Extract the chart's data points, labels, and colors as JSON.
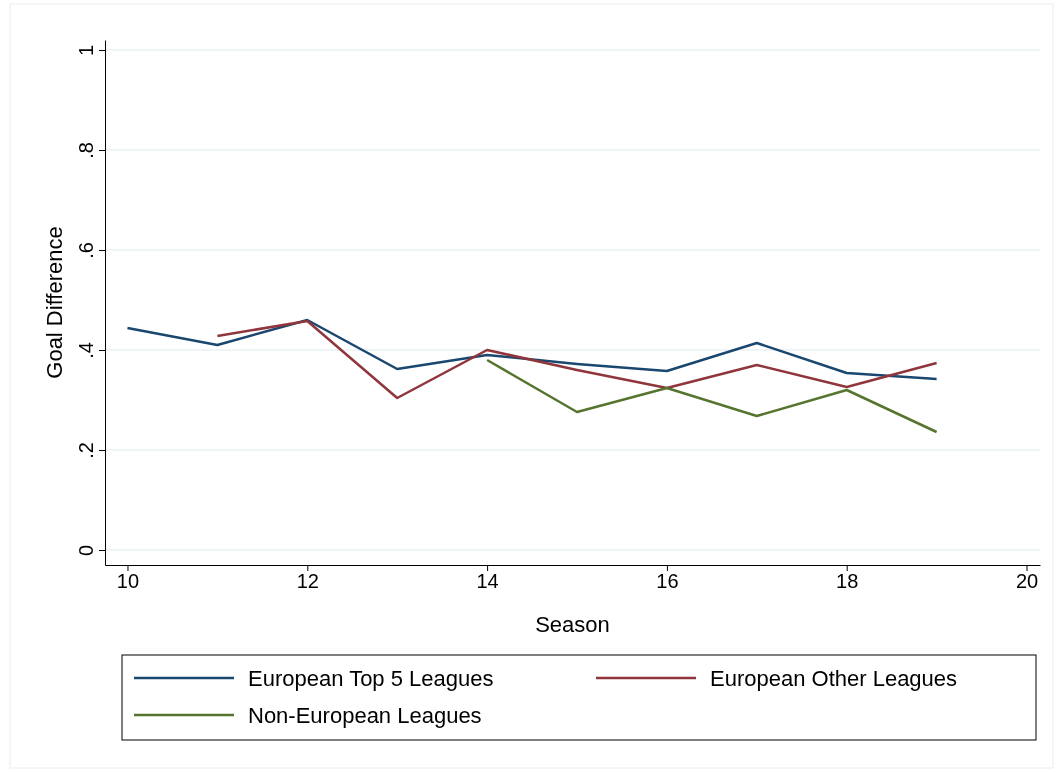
{
  "chart_data": {
    "type": "line",
    "xlabel": "Season",
    "ylabel": "Goal Difference",
    "xlim": [
      9.75,
      20.15
    ],
    "xticks": [
      10,
      12,
      14,
      16,
      18,
      20
    ],
    "ylim": [
      -0.03,
      1.02
    ],
    "yticks": [
      {
        "value": 0,
        "label": "0"
      },
      {
        "value": 0.2,
        "label": ".2"
      },
      {
        "value": 0.4,
        "label": ".4"
      },
      {
        "value": 0.6,
        "label": ".6"
      },
      {
        "value": 0.8,
        "label": ".8"
      },
      {
        "value": 1,
        "label": "1"
      }
    ],
    "grid": "y",
    "legend": "bottom",
    "marker": "none",
    "line_style": "solid",
    "series": [
      {
        "name": "European Top 5 Leagues",
        "color": "#1a476f",
        "x": [
          10,
          11,
          12,
          13,
          14,
          15,
          16,
          17,
          18,
          19
        ],
        "values": [
          0.444,
          0.41,
          0.46,
          0.362,
          0.39,
          0.372,
          0.358,
          0.414,
          0.354,
          0.342
        ]
      },
      {
        "name": "European Other Leagues",
        "color": "#90353b",
        "x": [
          11,
          12,
          13,
          14,
          15,
          16,
          17,
          18,
          19
        ],
        "values": [
          0.428,
          0.458,
          0.304,
          0.4,
          0.36,
          0.324,
          0.37,
          0.326,
          0.374
        ]
      },
      {
        "name": "Non-European Leagues",
        "color": "#55752f",
        "x": [
          14,
          15,
          16,
          17,
          18,
          19
        ],
        "values": [
          0.38,
          0.276,
          0.324,
          0.268,
          0.32,
          0.236
        ]
      }
    ]
  }
}
